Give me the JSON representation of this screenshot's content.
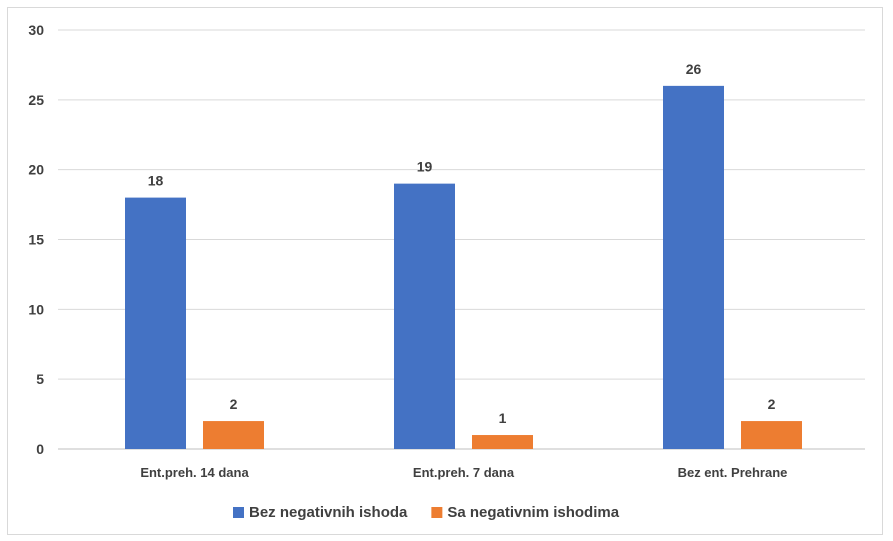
{
  "chart_data": {
    "type": "bar",
    "categories": [
      "Ent.preh. 14 dana",
      "Ent.preh. 7 dana",
      "Bez ent. Prehrane"
    ],
    "series": [
      {
        "name": "Bez negativnih ishoda",
        "values": [
          18,
          19,
          26
        ],
        "color": "#4472c4"
      },
      {
        "name": "Sa negativnim ishodima",
        "values": [
          2,
          1,
          2
        ],
        "color": "#ed7d31"
      }
    ],
    "title": "",
    "xlabel": "",
    "ylabel": "",
    "ylim": [
      0,
      30
    ],
    "yticks": [
      0,
      5,
      10,
      15,
      20,
      25,
      30
    ],
    "grid": true,
    "data_labels": true,
    "legend_position": "bottom"
  }
}
